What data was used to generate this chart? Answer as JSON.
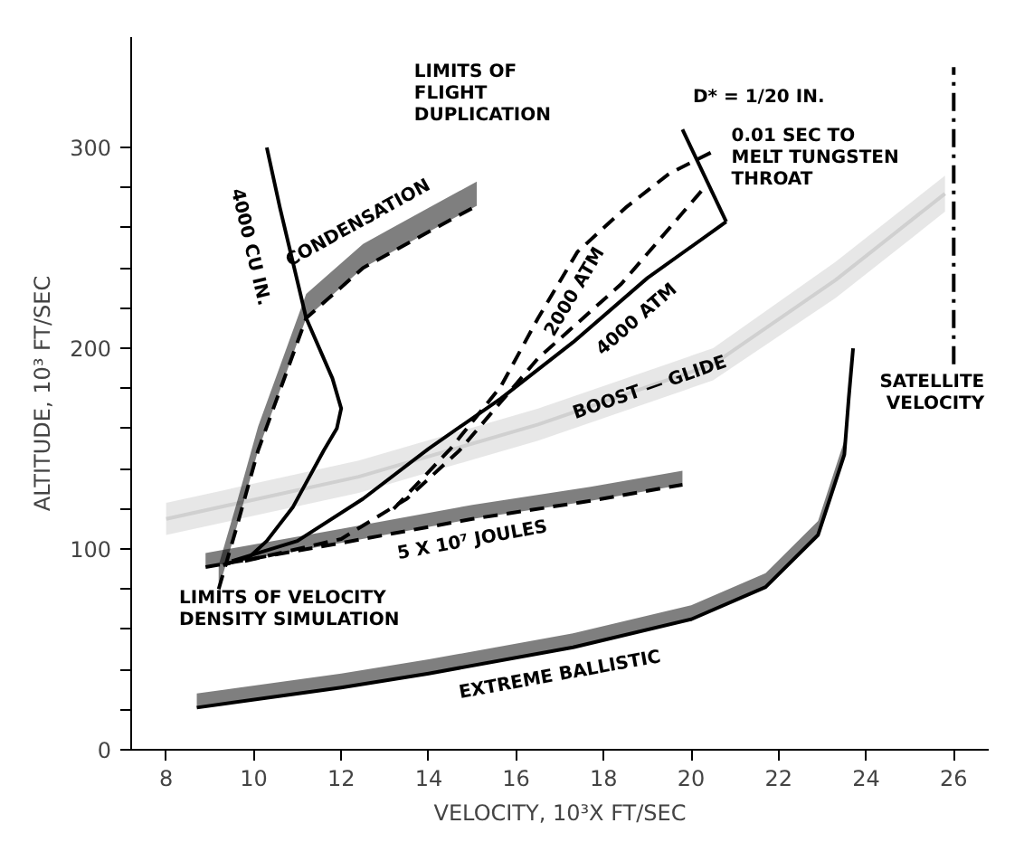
{
  "chart_data": {
    "type": "line",
    "xlabel": "VELOCITY, 10³X FT/SEC",
    "ylabel": "ALTITUDE, 10³ FT/SEC",
    "xlim": [
      7.2,
      26.8
    ],
    "ylim": [
      0,
      355
    ],
    "xticks": [
      8,
      10,
      12,
      14,
      16,
      18,
      20,
      22,
      24,
      26
    ],
    "yticks": [
      0,
      {
        "value": 20,
        "label": null
      },
      {
        "value": 40,
        "label": null
      },
      {
        "value": 60,
        "label": null
      },
      {
        "value": 80,
        "label": null
      },
      100,
      {
        "value": 120,
        "label": null
      },
      {
        "value": 140,
        "label": null
      },
      {
        "value": 160,
        "label": null
      },
      {
        "value": 180,
        "label": null
      },
      200,
      {
        "value": 220,
        "label": null
      },
      {
        "value": 240,
        "label": null
      },
      {
        "value": 260,
        "label": null
      },
      {
        "value": 280,
        "label": null
      },
      300
    ],
    "grid": false,
    "series": [
      {
        "color": "#000000",
        "line_style": "solid",
        "x": [
          8.7,
          12,
          14,
          17.3,
          20,
          21.7,
          22.9,
          23.5,
          23.6,
          23.7
        ],
        "values": [
          21,
          31,
          38,
          51,
          65,
          81,
          107,
          147,
          175,
          200
        ],
        "lower": [
          21,
          31,
          38,
          51,
          65,
          81,
          107,
          147,
          175,
          200
        ],
        "upper": [
          28,
          38,
          45,
          58,
          72,
          88,
          114,
          154,
          182,
          200
        ]
      },
      {
        "color": "#d0d0d0",
        "line_style": "solid",
        "x": [
          8.0,
          12.4,
          16.5,
          20.5,
          23.3,
          25.8
        ],
        "values": [
          115,
          136,
          162,
          192,
          234,
          277
        ],
        "lower": [
          107,
          128,
          154,
          184,
          225,
          268
        ],
        "upper": [
          123,
          144,
          170,
          200,
          243,
          286
        ]
      },
      {
        "color": "#000000",
        "line_style": "dashed",
        "x": [
          8.9,
          12,
          15,
          17.7,
          19.8
        ],
        "values": [
          91,
          103,
          115,
          124,
          132
        ],
        "lower": [
          91,
          103,
          115,
          124,
          132
        ],
        "upper": [
          98,
          110,
          122,
          131,
          139
        ]
      },
      {
        "color": "#000000",
        "line_style": "dashed",
        "x": [
          9.2,
          9.6,
          10.1,
          11.2,
          12.5,
          14,
          15.1
        ],
        "values": [
          80,
          110,
          149,
          215,
          240,
          258,
          271
        ],
        "lower": [
          80,
          110,
          149,
          215,
          240,
          258,
          271
        ],
        "upper": [
          92,
          122,
          161,
          227,
          252,
          270,
          283
        ]
      },
      {
        "color": "#000000",
        "line_style": "solid",
        "x": [
          10.3,
          10.6,
          11.2,
          11.8,
          12.0,
          11.9,
          11.6,
          10.9,
          10.3,
          9.9,
          9.3
        ],
        "values": [
          300,
          270,
          215,
          185,
          170,
          160,
          149,
          121,
          104,
          96,
          92
        ]
      },
      {
        "color": "#000000",
        "line_style": "solid",
        "x": [
          9.5,
          11,
          12.5,
          14,
          15.65,
          17.3,
          19,
          20.8
        ],
        "values": [
          94,
          104,
          125,
          150,
          175,
          203,
          235,
          263
        ]
      },
      {
        "color": "#000000",
        "line_style": "dashed",
        "x": [
          9.8,
          12,
          13.5,
          14.7,
          16.5,
          18.4,
          20.3
        ],
        "values": [
          94,
          105,
          125,
          149,
          195,
          232,
          280
        ]
      },
      {
        "color": "#000000",
        "line_style": "dashed",
        "x": [
          13.2,
          14.5,
          15.65,
          16.5,
          17.4,
          18.5,
          19.5,
          20.5
        ],
        "values": [
          120,
          150,
          181,
          215,
          248,
          270,
          287,
          298
        ]
      },
      {
        "color": "#000000",
        "line_style": "solid",
        "x": [
          19.8,
          20.8
        ],
        "values": [
          309,
          263
        ]
      },
      {
        "color": "#000000",
        "line_style": "dashdot",
        "x": [
          26,
          26
        ],
        "values": [
          192,
          340
        ]
      }
    ],
    "annotations": [
      "LIMITS OF\nFLIGHT\nDUPLICATION",
      "D* = 1/20 IN.",
      "0.01 SEC TO\nMELT TUNGSTEN\nTHROAT",
      "4000 CU IN.",
      "CONDENSATION",
      "2000 ATM",
      "4000 ATM",
      "BOOST — GLIDE",
      "SATELLITE\nVELOCITY",
      "5 X 10⁷ JOULES",
      "LIMITS OF VELOCITY\nDENSITY SIMULATION",
      "EXTREME BALLISTIC"
    ]
  }
}
